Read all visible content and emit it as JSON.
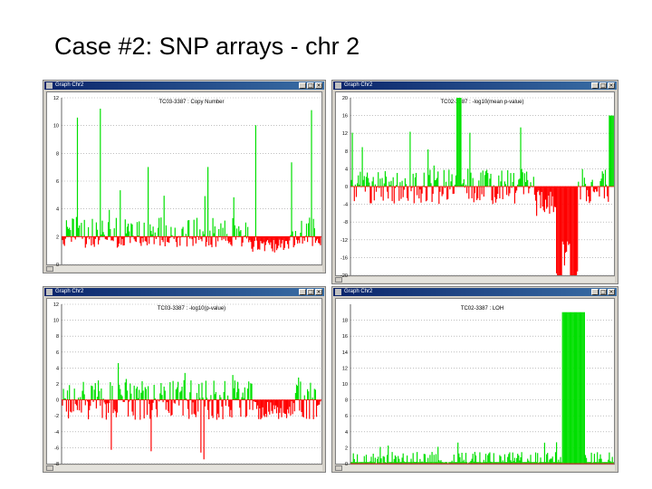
{
  "slide_title": "Case #2: SNP arrays - chr 2",
  "window_controls": {
    "minimize": "_",
    "maximize": "□",
    "close": "×"
  },
  "windows": [
    {
      "id": "win-tl",
      "title": "Graph Chr2",
      "plot_title": "TC03-3387 : Copy Number",
      "y_ticks": [
        "12",
        "10",
        "8",
        "6",
        "4",
        "2",
        "0"
      ],
      "y_min": 0,
      "y_max": 12,
      "baseline": 2,
      "type": "copy-number"
    },
    {
      "id": "win-tr",
      "title": "Graph Chr2",
      "plot_title": "TC02-3387 : -log10(mean p-value)",
      "y_ticks": [
        "20",
        "16",
        "12",
        "8",
        "4",
        "0",
        "-4",
        "-8",
        "-12",
        "-16",
        "-20"
      ],
      "y_min": -20,
      "y_max": 20,
      "baseline": 0,
      "type": "pvalue"
    },
    {
      "id": "win-bl",
      "title": "Graph Chr2",
      "plot_title": "TC03-3387 : -log10(p-value)",
      "y_ticks": [
        "12",
        "10",
        "8",
        "6",
        "4",
        "2",
        "0",
        "-2",
        "-4",
        "-6",
        "-8"
      ],
      "y_min": -8,
      "y_max": 12,
      "baseline": 0,
      "type": "pvalue-single"
    },
    {
      "id": "win-br",
      "title": "Graph Chr2",
      "plot_title": "TC02-3387 : LOH",
      "y_ticks": [
        "18",
        "16",
        "14",
        "12",
        "10",
        "8",
        "6",
        "4",
        "2",
        "0"
      ],
      "y_min": 0,
      "y_max": 20,
      "baseline": 0,
      "type": "loh"
    }
  ],
  "colors": {
    "gain": "#00e000",
    "loss": "#ff0000",
    "grid": "#9a9a9a",
    "axis": "#404040"
  }
}
